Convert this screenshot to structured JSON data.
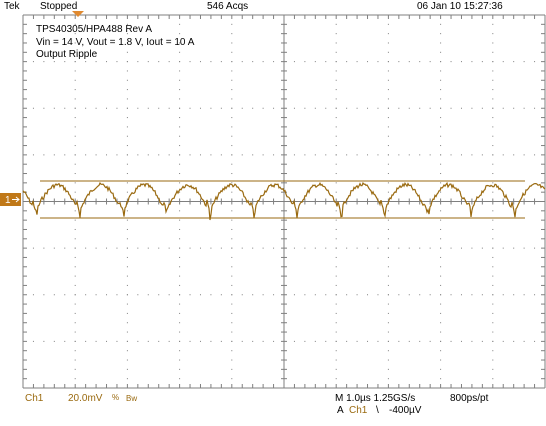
{
  "header": {
    "brand": "Tek",
    "run_state": "Stopped",
    "acquisitions": "546 Acqs",
    "datetime": "06 Jan 10 15:27:36"
  },
  "annotation": {
    "line1": "TPS40305/HPA488 Rev A",
    "line2": "Vin = 14 V, Vout = 1.8 V, Iout = 10 A",
    "line3": "Output Ripple"
  },
  "channel_marker": {
    "label": "1",
    "arrow": "right-arrow"
  },
  "footer": {
    "channel": "Ch1",
    "volts_per_div": "20.0mV",
    "coupling_symbol": "%",
    "bandwidth": "Bw",
    "timebase": "M 1.0µs 1.25GS/s",
    "record": "800ps/pt",
    "trigger_mode": "A",
    "trigger_source": "Ch1",
    "trigger_slope": "\\",
    "trigger_level": "-400µV"
  },
  "colors": {
    "trace": "#9a6a10",
    "grid": "#7f7f7f",
    "trigger_marker": "#e08a30",
    "channel_tag": "#c07818"
  }
}
